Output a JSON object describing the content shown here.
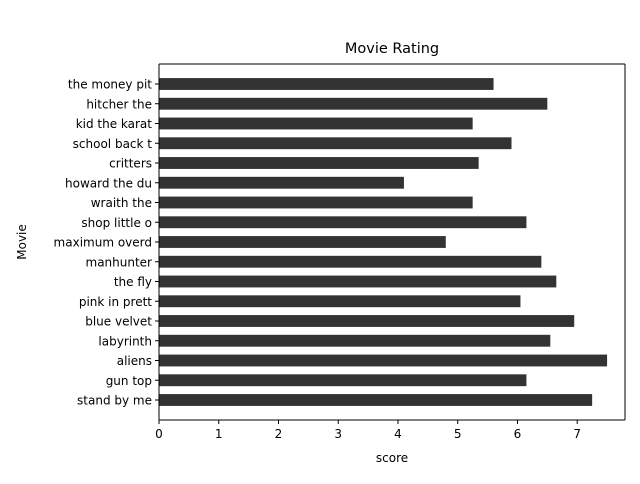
{
  "chart_data": {
    "type": "bar",
    "orientation": "horizontal",
    "title": "Movie Rating",
    "xlabel": "score",
    "ylabel": "Movie",
    "xlim": [
      0,
      7.8
    ],
    "xticks": [
      0,
      1,
      2,
      3,
      4,
      5,
      6,
      7
    ],
    "grid": false,
    "legend": "none",
    "bar_color": "#333333",
    "categories": [
      "the money pit",
      "hitcher the",
      "kid the karat",
      "school back t",
      "critters",
      "howard the du",
      "wraith the",
      "shop little o",
      "maximum overd",
      "manhunter",
      "the fly",
      "pink in prett",
      "blue velvet",
      "labyrinth",
      "aliens",
      "gun top",
      "stand by me"
    ],
    "values": [
      5.6,
      6.5,
      5.25,
      5.9,
      5.35,
      4.1,
      5.25,
      6.15,
      4.8,
      6.4,
      6.65,
      6.05,
      6.95,
      6.55,
      7.5,
      6.15,
      7.25
    ]
  }
}
